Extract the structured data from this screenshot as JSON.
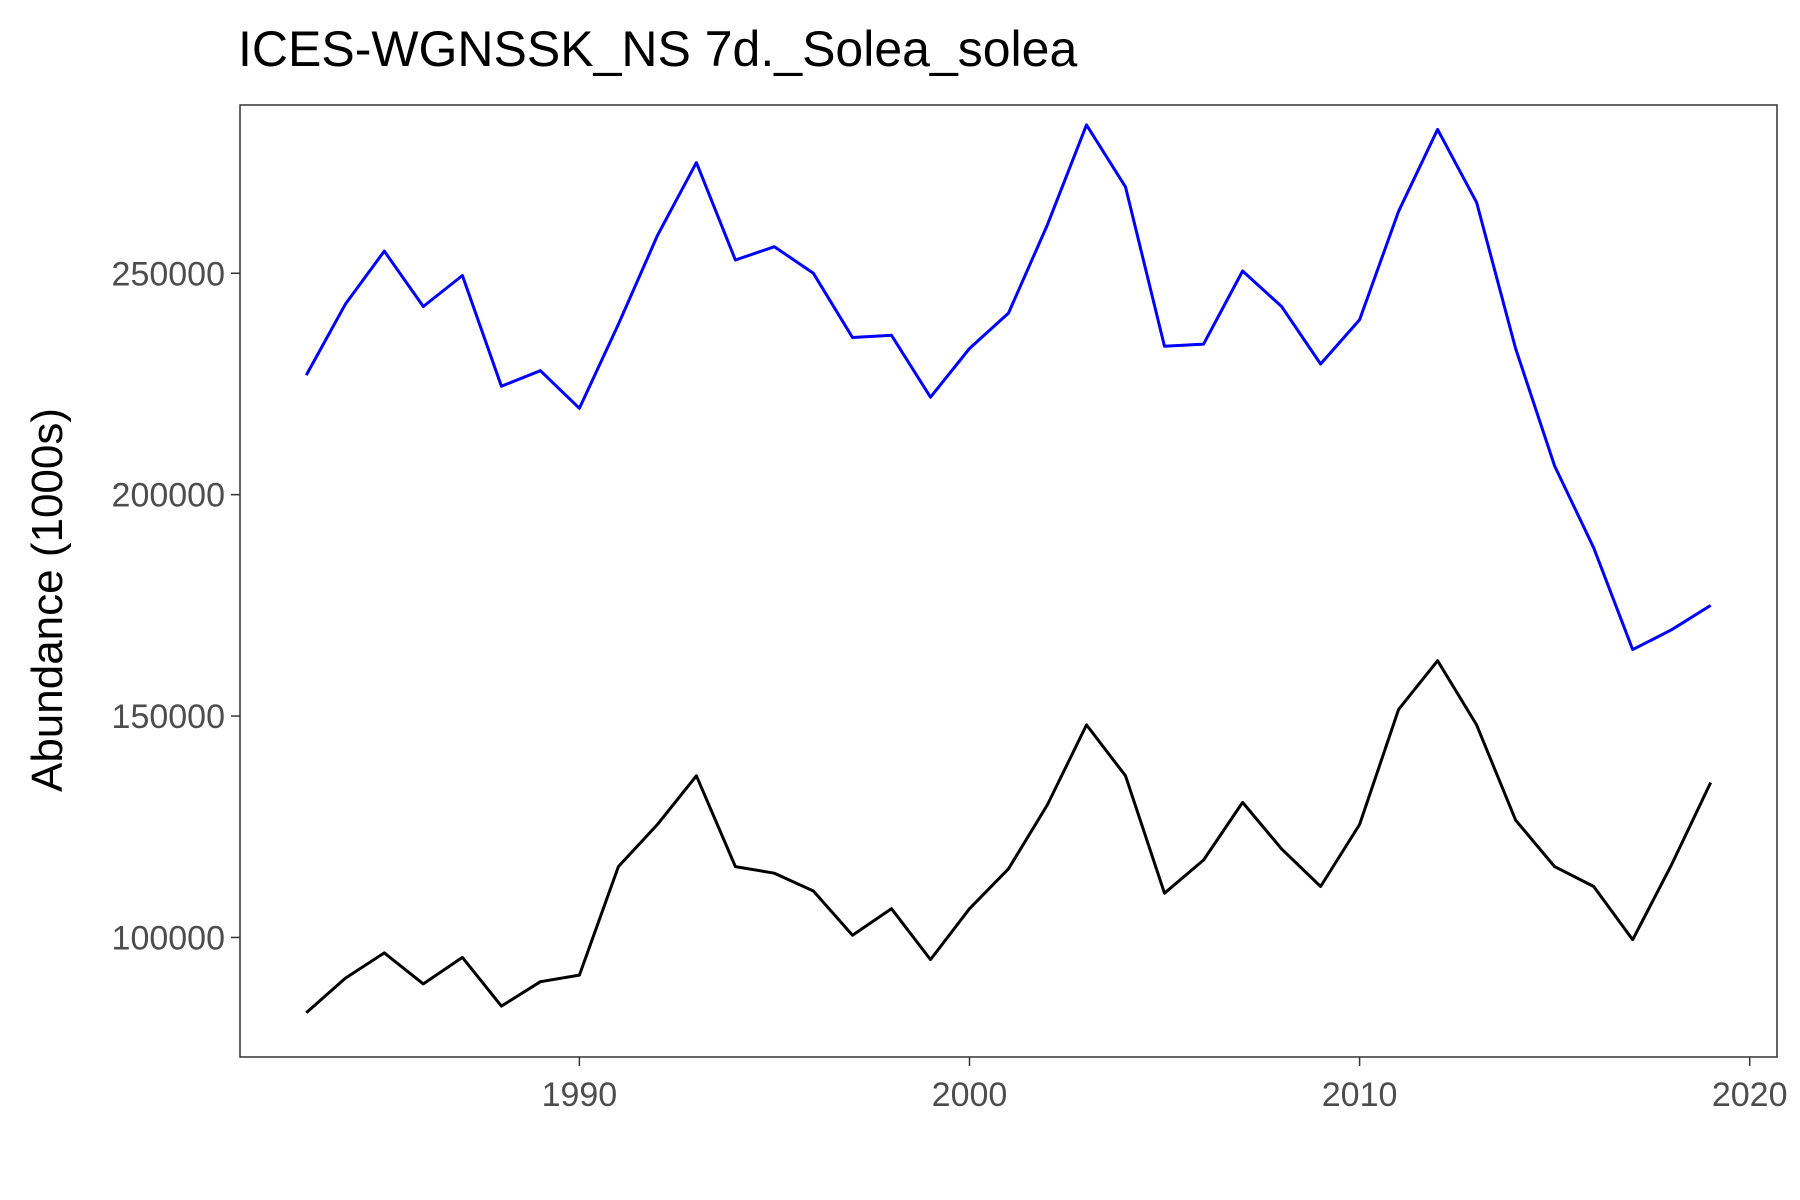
{
  "chart_data": {
    "type": "line",
    "title": "ICES-WGNSSK_NS 7d._Solea_solea",
    "xlabel": "",
    "ylabel": "Abundance (1000s)",
    "xlim": [
      1981.3,
      2020.7
    ],
    "ylim": [
      73000,
      288000
    ],
    "x_ticks": [
      1990,
      2000,
      2010,
      2020
    ],
    "y_ticks": [
      100000,
      150000,
      200000,
      250000
    ],
    "grid": false,
    "legend": "none",
    "x": [
      1983,
      1984,
      1985,
      1986,
      1987,
      1988,
      1989,
      1990,
      1991,
      1992,
      1993,
      1994,
      1995,
      1996,
      1997,
      1998,
      1999,
      2000,
      2001,
      2002,
      2003,
      2004,
      2005,
      2006,
      2007,
      2008,
      2009,
      2010,
      2011,
      2012,
      2013,
      2014,
      2015,
      2016,
      2017,
      2018,
      2019
    ],
    "series": [
      {
        "color": "#0000ff",
        "values": [
          227000,
          243000,
          255000,
          242500,
          249500,
          224500,
          228000,
          219500,
          238500,
          258500,
          275000,
          253000,
          256000,
          250000,
          235500,
          236000,
          222000,
          233000,
          241000,
          261000,
          283500,
          269500,
          233500,
          234000,
          250500,
          242500,
          229500,
          239500,
          264000,
          282500,
          266000,
          233000,
          206500,
          188000,
          165000,
          169500,
          175000
        ]
      },
      {
        "color": "#000000",
        "values": [
          83000,
          90800,
          96500,
          89500,
          95500,
          84500,
          90000,
          91500,
          116000,
          125500,
          136500,
          116000,
          114500,
          110500,
          100500,
          106500,
          95000,
          106500,
          115500,
          130000,
          148000,
          136500,
          110000,
          117500,
          130500,
          120000,
          111500,
          125500,
          151500,
          162500,
          148000,
          126500,
          116000,
          111500,
          99500,
          116500,
          135000
        ]
      }
    ]
  }
}
